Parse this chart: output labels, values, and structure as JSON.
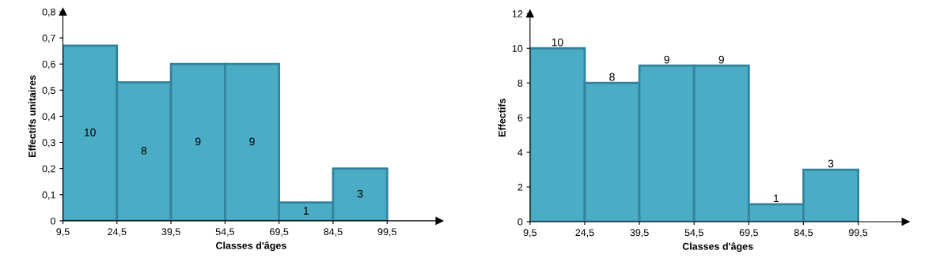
{
  "chart_data": [
    {
      "type": "histogram",
      "xlabel": "Classes d'âges",
      "ylabel": "Effectifs unitaires",
      "bins": [
        9.5,
        24.5,
        39.5,
        54.5,
        69.5,
        84.5,
        99.5
      ],
      "values": [
        0.67,
        0.53,
        0.6,
        0.6,
        0.07,
        0.2
      ],
      "annotations": [
        "10",
        "8",
        "9",
        "9",
        "1",
        "3"
      ],
      "color": "#4bacc6",
      "xlim": [
        9.5,
        114
      ],
      "xticks": [
        {
          "value": 9.5,
          "label": "9,5"
        },
        {
          "value": 24.5,
          "label": "24,5"
        },
        {
          "value": 39.5,
          "label": "39,5"
        },
        {
          "value": 54.5,
          "label": "54,5"
        },
        {
          "value": 69.5,
          "label": "69,5"
        },
        {
          "value": 84.5,
          "label": "84,5"
        },
        {
          "value": 99.5,
          "label": "99,5"
        }
      ],
      "ylim": [
        0,
        0.8
      ],
      "yticks": [
        0,
        {
          "value": 0.1,
          "label": "0,1"
        },
        {
          "value": 0.2,
          "label": "0,2"
        },
        {
          "value": 0.3,
          "label": "0,3"
        },
        {
          "value": 0.4,
          "label": "0,4"
        },
        {
          "value": 0.5,
          "label": "0,5"
        },
        {
          "value": 0.6,
          "label": "0,6"
        },
        {
          "value": 0.7,
          "label": "0,7"
        },
        {
          "value": 0.8,
          "label": "0,8"
        }
      ],
      "grid": false
    },
    {
      "type": "histogram",
      "xlabel": "Classes d'âges",
      "ylabel": "Effectifs",
      "bins": [
        9.5,
        24.5,
        39.5,
        54.5,
        69.5,
        84.5,
        99.5
      ],
      "values": [
        10,
        8,
        9,
        9,
        1,
        3
      ],
      "data_labels": true,
      "color": "#4bacc6",
      "xlim": [
        9.5,
        112.5
      ],
      "xticks": [
        {
          "value": 9.5,
          "label": "9,5"
        },
        {
          "value": 24.5,
          "label": "24,5"
        },
        {
          "value": 39.5,
          "label": "39,5"
        },
        {
          "value": 54.5,
          "label": "54,5"
        },
        {
          "value": 69.5,
          "label": "69,5"
        },
        {
          "value": 84.5,
          "label": "84,5"
        },
        {
          "value": 99.5,
          "label": "99,5"
        }
      ],
      "ylim": [
        0,
        12
      ],
      "yticks": [
        0,
        2,
        4,
        6,
        8,
        10,
        12
      ],
      "grid": false
    }
  ]
}
